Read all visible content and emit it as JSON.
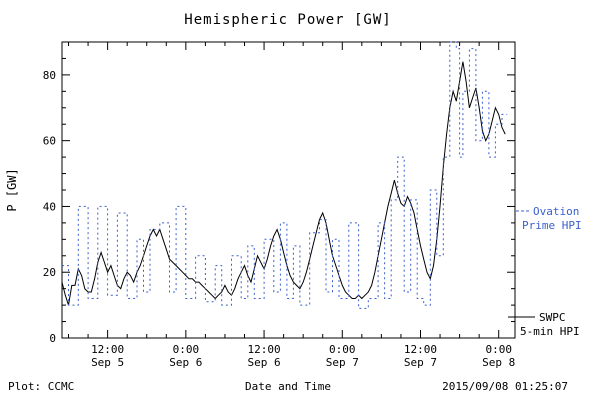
{
  "title": "Hemispheric Power [GW]",
  "axes": {
    "x_label": "Date and Time",
    "y_label": "P [GW]"
  },
  "footer": {
    "left": "Plot: CCMC",
    "center": "Date and Time",
    "right": "2015/09/08 01:25:07"
  },
  "legend": {
    "ovation": {
      "line1": "Ovation",
      "line2": "Prime HPI",
      "color": "#3a5fcd"
    },
    "swpc": {
      "line1": "SWPC",
      "line2": "5-min HPI",
      "color": "#000000"
    }
  },
  "colors": {
    "axis": "#000000",
    "ovation_blue": "#3a5fcd",
    "swpc_black": "#000000",
    "background": "#ffffff"
  },
  "chart_data": {
    "type": "line",
    "title": "Hemispheric Power [GW]",
    "xlabel": "Date and Time",
    "ylabel": "P [GW]",
    "x_unit": "hours since 2015-09-05 00:00 UT",
    "xlim": [
      5,
      74.5
    ],
    "ylim": [
      0,
      90
    ],
    "y_ticks": [
      0,
      20,
      40,
      60,
      80
    ],
    "y_minor_step": 5,
    "x_minor_step": 3,
    "grid": false,
    "legend_position": "right-outside",
    "x_ticks": [
      {
        "value": 12,
        "label": "12:00",
        "date": "Sep 5"
      },
      {
        "value": 24,
        "label": "0:00",
        "date": "Sep 6"
      },
      {
        "value": 36,
        "label": "12:00",
        "date": "Sep 6"
      },
      {
        "value": 48,
        "label": "0:00",
        "date": "Sep 7"
      },
      {
        "value": 60,
        "label": "12:00",
        "date": "Sep 7"
      },
      {
        "value": 72,
        "label": "0:00",
        "date": "Sep 8"
      }
    ],
    "series": [
      {
        "name": "SWPC 5-min HPI",
        "color": "#000000",
        "style": "solid",
        "step": false,
        "x_start": 5.0,
        "x_step": 0.5,
        "y": [
          17,
          13,
          10,
          16,
          16,
          21,
          19,
          15,
          14,
          14,
          18,
          23,
          26,
          23,
          20,
          22,
          19,
          16,
          15,
          18,
          20,
          19,
          17,
          20,
          22,
          25,
          28,
          31,
          33,
          31,
          33,
          30,
          27,
          24,
          23,
          22,
          21,
          20,
          19,
          18,
          18,
          17,
          17,
          16,
          15,
          14,
          13,
          12,
          13,
          14,
          16,
          14,
          13,
          15,
          18,
          20,
          22,
          19,
          17,
          21,
          25,
          23,
          21,
          24,
          28,
          31,
          33,
          30,
          26,
          22,
          19,
          17,
          16,
          15,
          17,
          20,
          24,
          28,
          32,
          36,
          38,
          35,
          30,
          25,
          22,
          19,
          16,
          14,
          13,
          12,
          12,
          13,
          12,
          13,
          14,
          16,
          20,
          25,
          30,
          35,
          40,
          44,
          48,
          44,
          41,
          40,
          43,
          41,
          38,
          33,
          28,
          24,
          20,
          18,
          22,
          30,
          40,
          52,
          62,
          70,
          75,
          72,
          78,
          84,
          78,
          70,
          73,
          76,
          70,
          63,
          60,
          62,
          66,
          70,
          68,
          64,
          62
        ]
      },
      {
        "name": "Ovation Prime HPI",
        "color": "#3a5fcd",
        "style": "dotted",
        "step": true,
        "x": [
          5,
          6,
          7.5,
          9,
          10.5,
          12,
          13.5,
          15,
          16.5,
          17.5,
          18.5,
          20,
          21.5,
          22.5,
          24,
          25.5,
          27,
          28.5,
          29.5,
          31,
          32.5,
          33.5,
          34.5,
          36,
          37.5,
          38.5,
          39.5,
          40.5,
          41.5,
          43,
          44.5,
          45.5,
          46.5,
          47.5,
          49,
          50.5,
          52,
          53.5,
          54.5,
          55.5,
          56.5,
          57.5,
          58.5,
          59.5,
          60.5,
          61.5,
          62.5,
          63.5,
          64.5,
          65.5,
          66,
          66.5,
          67.5,
          68.5,
          69.5,
          70.5,
          71.5,
          72.5
        ],
        "y": [
          22,
          10,
          40,
          12,
          40,
          13,
          38,
          12,
          30,
          14,
          33,
          35,
          14,
          40,
          12,
          25,
          11,
          22,
          10,
          25,
          12,
          28,
          12,
          30,
          14,
          35,
          12,
          28,
          10,
          32,
          36,
          14,
          30,
          12,
          35,
          9,
          12,
          35,
          12,
          42,
          55,
          14,
          42,
          12,
          10,
          45,
          25,
          55,
          90,
          88,
          55,
          75,
          88,
          60,
          75,
          55,
          65,
          68
        ]
      }
    ]
  }
}
